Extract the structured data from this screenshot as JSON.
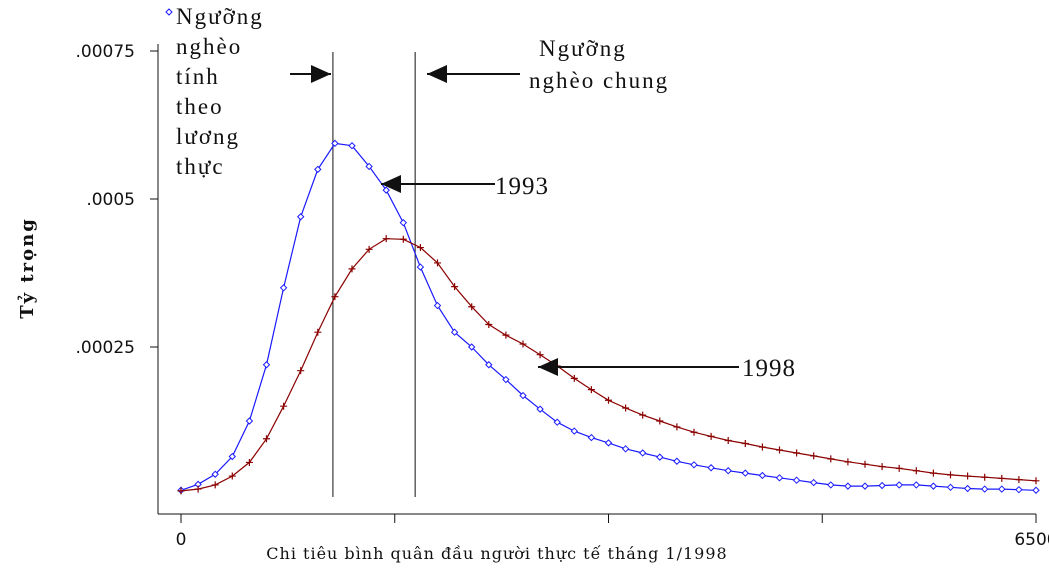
{
  "chart_data": {
    "type": "line",
    "title": "",
    "xlabel": "Chi tiêu bình quân đầu người thực tế tháng 1/1998",
    "ylabel": "Tỷ trọng",
    "xlim": [
      0,
      6500
    ],
    "ylim": [
      0,
      0.00085
    ],
    "x_tick_labels": [
      {
        "value": 0,
        "label": "0"
      },
      {
        "value": 1625,
        "label": ""
      },
      {
        "value": 3250,
        "label": ""
      },
      {
        "value": 4875,
        "label": ""
      },
      {
        "value": 6500,
        "label": "6500"
      }
    ],
    "y_tick_labels": [
      {
        "value": 0.00025,
        "label": ".00025"
      },
      {
        "value": 0.0005,
        "label": ".0005"
      },
      {
        "value": 0.00075,
        "label": ".00075"
      }
    ],
    "grid": false,
    "series": [
      {
        "name": "Ngưỡng nghèo tính theo lương thực",
        "label": "1993",
        "color": "#1a1aff",
        "marker": "diamond",
        "points": [
          [
            0,
            8e-06
          ],
          [
            130,
            1.8e-05
          ],
          [
            260,
            3.5e-05
          ],
          [
            390,
            6.5e-05
          ],
          [
            520,
            0.000125
          ],
          [
            650,
            0.00022
          ],
          [
            780,
            0.00035
          ],
          [
            910,
            0.00047
          ],
          [
            1040,
            0.00055
          ],
          [
            1170,
            0.000594
          ],
          [
            1300,
            0.00059
          ],
          [
            1430,
            0.000555
          ],
          [
            1560,
            0.000515
          ],
          [
            1690,
            0.00046
          ],
          [
            1820,
            0.000385
          ],
          [
            1950,
            0.00032
          ],
          [
            2080,
            0.000275
          ],
          [
            2210,
            0.00025
          ],
          [
            2340,
            0.00022
          ],
          [
            2470,
            0.000195
          ],
          [
            2600,
            0.000168
          ],
          [
            2730,
            0.000145
          ],
          [
            2860,
            0.000123
          ],
          [
            2990,
            0.000108
          ],
          [
            3120,
            9.7e-05
          ],
          [
            3250,
            8.8e-05
          ],
          [
            3380,
            7.8e-05
          ],
          [
            3510,
            7.1e-05
          ],
          [
            3640,
            6.4e-05
          ],
          [
            3770,
            5.7e-05
          ],
          [
            3900,
            5.1e-05
          ],
          [
            4030,
            4.6e-05
          ],
          [
            4160,
            4.1e-05
          ],
          [
            4290,
            3.7e-05
          ],
          [
            4420,
            3.3e-05
          ],
          [
            4550,
            2.9e-05
          ],
          [
            4680,
            2.5e-05
          ],
          [
            4810,
            2.1e-05
          ],
          [
            4940,
            1.7e-05
          ],
          [
            5070,
            1.5e-05
          ],
          [
            5200,
            1.5e-05
          ],
          [
            5330,
            1.6e-05
          ],
          [
            5460,
            1.7e-05
          ],
          [
            5590,
            1.7e-05
          ],
          [
            5720,
            1.5e-05
          ],
          [
            5850,
            1.3e-05
          ],
          [
            5980,
            1.1e-05
          ],
          [
            6110,
            1e-05
          ],
          [
            6240,
            1e-05
          ],
          [
            6370,
            9e-06
          ],
          [
            6500,
            8e-06
          ]
        ]
      },
      {
        "name": "Ngưỡng nghèo chung",
        "label": "1998",
        "color": "#8b0000",
        "marker": "plus",
        "points": [
          [
            0,
            7e-06
          ],
          [
            130,
            1e-05
          ],
          [
            260,
            1.7e-05
          ],
          [
            390,
            3.2e-05
          ],
          [
            520,
            5.5e-05
          ],
          [
            650,
            9.5e-05
          ],
          [
            780,
            0.00015
          ],
          [
            910,
            0.00021
          ],
          [
            1040,
            0.000275
          ],
          [
            1170,
            0.000335
          ],
          [
            1300,
            0.000382
          ],
          [
            1430,
            0.000415
          ],
          [
            1560,
            0.000433
          ],
          [
            1690,
            0.000432
          ],
          [
            1820,
            0.000418
          ],
          [
            1950,
            0.000392
          ],
          [
            2080,
            0.000352
          ],
          [
            2210,
            0.000318
          ],
          [
            2340,
            0.000288
          ],
          [
            2470,
            0.00027
          ],
          [
            2600,
            0.000255
          ],
          [
            2730,
            0.000237
          ],
          [
            2860,
            0.000218
          ],
          [
            2990,
            0.000197
          ],
          [
            3120,
            0.000178
          ],
          [
            3250,
            0.00016
          ],
          [
            3380,
            0.000147
          ],
          [
            3510,
            0.000135
          ],
          [
            3640,
            0.000125
          ],
          [
            3770,
            0.000115
          ],
          [
            3900,
            0.000106
          ],
          [
            4030,
            9.9e-05
          ],
          [
            4160,
            9.2e-05
          ],
          [
            4290,
            8.7e-05
          ],
          [
            4420,
            8.1e-05
          ],
          [
            4550,
            7.6e-05
          ],
          [
            4680,
            7.1e-05
          ],
          [
            4810,
            6.6e-05
          ],
          [
            4940,
            6.1e-05
          ],
          [
            5070,
            5.6e-05
          ],
          [
            5200,
            5.2e-05
          ],
          [
            5330,
            4.8e-05
          ],
          [
            5460,
            4.5e-05
          ],
          [
            5590,
            4.1e-05
          ],
          [
            5720,
            3.7e-05
          ],
          [
            5850,
            3.4e-05
          ],
          [
            5980,
            3.2e-05
          ],
          [
            6110,
            3e-05
          ],
          [
            6240,
            2.8e-05
          ],
          [
            6370,
            2.6e-05
          ],
          [
            6500,
            2.4e-05
          ]
        ]
      }
    ],
    "reference_lines": [
      {
        "x": 1155
      },
      {
        "x": 1780
      }
    ],
    "annotations": [
      {
        "lines": [
          "Ngưỡng",
          "nghèo",
          "tính",
          "theo",
          "lương",
          "thực"
        ]
      },
      {
        "lines": [
          "Ngưỡng",
          "nghèo chung"
        ]
      },
      {
        "lines": [
          "1993"
        ]
      },
      {
        "lines": [
          "1998"
        ]
      }
    ]
  }
}
